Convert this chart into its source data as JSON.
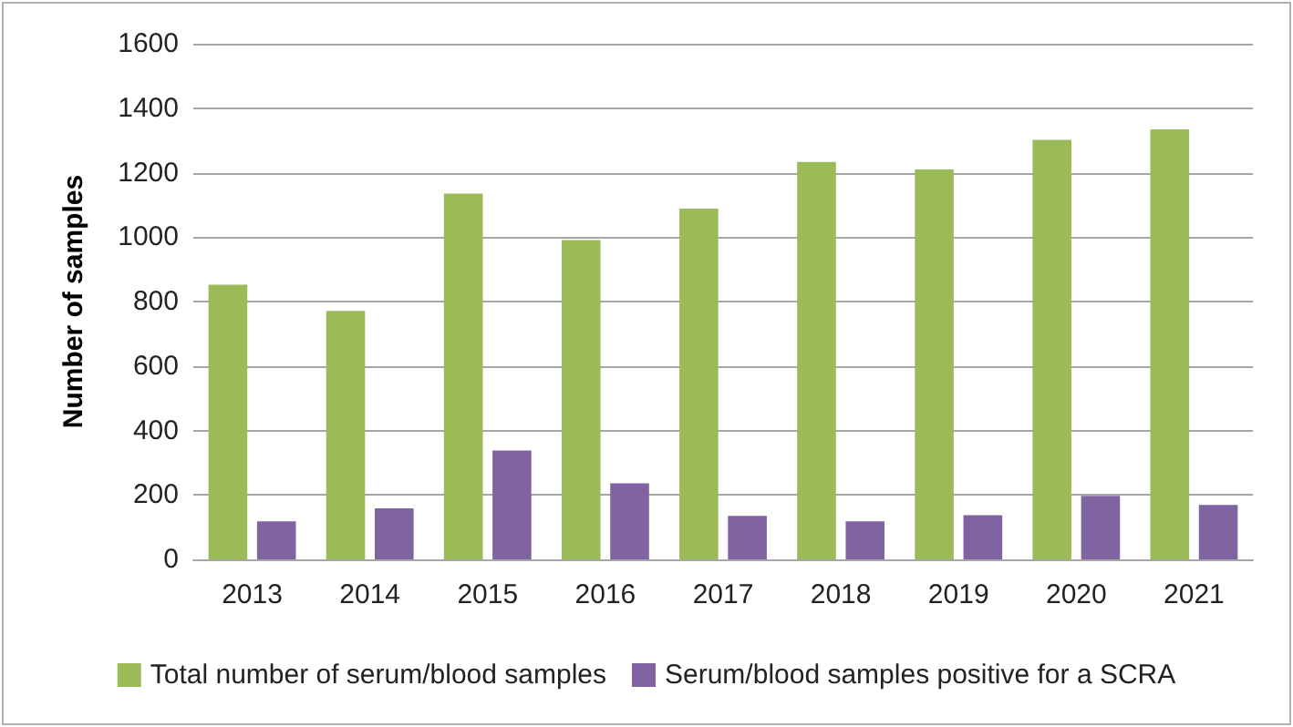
{
  "chart_data": {
    "type": "bar",
    "ylabel": "Number of samples",
    "categories": [
      "2013",
      "2014",
      "2015",
      "2016",
      "2017",
      "2018",
      "2019",
      "2020",
      "2021"
    ],
    "series": [
      {
        "name": "Total number of serum/blood samples",
        "color": "#9bbb59",
        "values": [
          852,
          771,
          1135,
          991,
          1088,
          1233,
          1210,
          1302,
          1334
        ]
      },
      {
        "name": "Serum/blood samples positive for a SCRA",
        "color": "#8064a2",
        "values": [
          118,
          158,
          338,
          236,
          135,
          118,
          137,
          197,
          169
        ]
      }
    ],
    "ylim": [
      0,
      1600
    ],
    "yticks": [
      0,
      200,
      400,
      600,
      800,
      1000,
      1200,
      1400,
      1600
    ],
    "grid": "y",
    "legend": "bottom"
  }
}
